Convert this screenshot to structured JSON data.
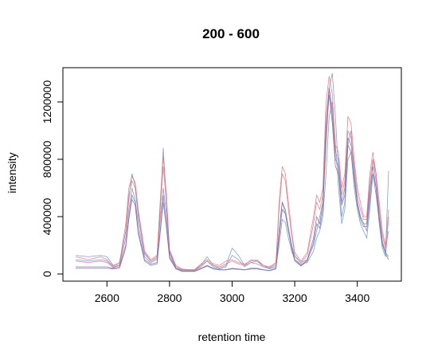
{
  "chart_data": {
    "type": "line",
    "title": "200 - 600",
    "xlabel": "retention time",
    "ylabel": "intensity",
    "xlim": [
      2500,
      3500
    ],
    "ylim": [
      0,
      1400000
    ],
    "x_ticks": [
      2600,
      2800,
      3000,
      3200,
      3400
    ],
    "x_tick_labels": [
      "2600",
      "2800",
      "3000",
      "3200",
      "3400"
    ],
    "y_ticks": [
      0,
      400000,
      800000,
      1200000
    ],
    "y_tick_labels": [
      "0",
      "400000",
      "800000",
      "1200000"
    ],
    "grid": false,
    "legend": "none",
    "colors": {
      "blue": "#6d8fc4",
      "red": "#e0737f",
      "purple": "#7d6fa8"
    },
    "x": [
      2500,
      2520,
      2540,
      2560,
      2580,
      2600,
      2620,
      2640,
      2660,
      2670,
      2680,
      2690,
      2700,
      2720,
      2740,
      2760,
      2770,
      2780,
      2790,
      2800,
      2820,
      2840,
      2860,
      2880,
      2900,
      2920,
      2940,
      2960,
      2980,
      3000,
      3020,
      3040,
      3060,
      3080,
      3100,
      3120,
      3140,
      3150,
      3160,
      3170,
      3180,
      3190,
      3200,
      3220,
      3240,
      3260,
      3270,
      3280,
      3290,
      3300,
      3310,
      3320,
      3330,
      3340,
      3350,
      3360,
      3370,
      3380,
      3390,
      3400,
      3410,
      3420,
      3430,
      3440,
      3450,
      3460,
      3470,
      3480,
      3490,
      3500
    ],
    "series": [
      {
        "color": "#6d8fc4",
        "values": [
          130000,
          125000,
          120000,
          125000,
          130000,
          120000,
          60000,
          80000,
          300000,
          520000,
          700000,
          620000,
          400000,
          150000,
          90000,
          120000,
          450000,
          880000,
          500000,
          160000,
          50000,
          30000,
          30000,
          30000,
          60000,
          120000,
          60000,
          40000,
          60000,
          180000,
          130000,
          60000,
          100000,
          90000,
          60000,
          40000,
          60000,
          300000,
          500000,
          420000,
          300000,
          200000,
          120000,
          80000,
          100000,
          200000,
          300000,
          400000,
          500000,
          900000,
          1300000,
          1400000,
          1100000,
          700000,
          400000,
          500000,
          900000,
          1000000,
          700000,
          500000,
          400000,
          350000,
          300000,
          500000,
          800000,
          700000,
          400000,
          200000,
          150000,
          720000
        ]
      },
      {
        "color": "#6d8fc4",
        "values": [
          100000,
          95000,
          90000,
          95000,
          100000,
          90000,
          50000,
          60000,
          250000,
          450000,
          600000,
          520000,
          350000,
          120000,
          80000,
          100000,
          380000,
          600000,
          420000,
          140000,
          40000,
          25000,
          25000,
          25000,
          50000,
          90000,
          50000,
          35000,
          50000,
          130000,
          100000,
          50000,
          80000,
          70000,
          50000,
          35000,
          50000,
          200000,
          380000,
          360000,
          250000,
          160000,
          100000,
          70000,
          80000,
          160000,
          250000,
          300000,
          400000,
          700000,
          1100000,
          1200000,
          900000,
          600000,
          350000,
          450000,
          800000,
          850000,
          600000,
          450000,
          350000,
          300000,
          250000,
          450000,
          700000,
          600000,
          350000,
          180000,
          120000,
          400000
        ]
      },
      {
        "color": "#e0737f",
        "values": [
          120000,
          110000,
          100000,
          110000,
          120000,
          100000,
          55000,
          70000,
          350000,
          600000,
          680000,
          640000,
          450000,
          160000,
          100000,
          130000,
          500000,
          820000,
          550000,
          170000,
          60000,
          35000,
          30000,
          30000,
          70000,
          100000,
          70000,
          60000,
          90000,
          100000,
          80000,
          70000,
          90000,
          100000,
          60000,
          50000,
          80000,
          500000,
          750000,
          700000,
          500000,
          300000,
          150000,
          90000,
          150000,
          400000,
          550000,
          500000,
          600000,
          1200000,
          1380000,
          1250000,
          900000,
          850000,
          600000,
          700000,
          1100000,
          1050000,
          800000,
          600000,
          500000,
          400000,
          400000,
          700000,
          850000,
          700000,
          500000,
          300000,
          200000,
          450000
        ]
      },
      {
        "color": "#e0737f",
        "values": [
          90000,
          85000,
          80000,
          85000,
          90000,
          80000,
          45000,
          60000,
          300000,
          550000,
          650000,
          600000,
          420000,
          140000,
          90000,
          110000,
          450000,
          750000,
          500000,
          150000,
          50000,
          30000,
          25000,
          25000,
          60000,
          90000,
          60000,
          50000,
          70000,
          90000,
          70000,
          60000,
          80000,
          90000,
          50000,
          45000,
          70000,
          450000,
          700000,
          650000,
          450000,
          270000,
          130000,
          80000,
          130000,
          350000,
          500000,
          450000,
          550000,
          1100000,
          1300000,
          1150000,
          850000,
          800000,
          550000,
          650000,
          1000000,
          950000,
          750000,
          550000,
          450000,
          380000,
          380000,
          650000,
          800000,
          650000,
          450000,
          270000,
          180000,
          300000
        ]
      },
      {
        "color": "#7d6fa8",
        "values": [
          50000,
          50000,
          50000,
          50000,
          50000,
          50000,
          40000,
          50000,
          200000,
          400000,
          550000,
          500000,
          300000,
          100000,
          70000,
          80000,
          300000,
          550000,
          350000,
          120000,
          40000,
          20000,
          20000,
          20000,
          40000,
          60000,
          40000,
          30000,
          30000,
          40000,
          35000,
          30000,
          40000,
          40000,
          30000,
          25000,
          40000,
          300000,
          500000,
          450000,
          320000,
          200000,
          100000,
          60000,
          100000,
          250000,
          400000,
          350000,
          500000,
          1000000,
          1300000,
          1100000,
          800000,
          750000,
          500000,
          600000,
          950000,
          900000,
          700000,
          500000,
          400000,
          350000,
          350000,
          600000,
          750000,
          600000,
          400000,
          230000,
          150000,
          120000
        ]
      },
      {
        "color": "#7d6fa8",
        "values": [
          40000,
          40000,
          40000,
          40000,
          40000,
          40000,
          35000,
          40000,
          180000,
          380000,
          520000,
          480000,
          280000,
          90000,
          60000,
          70000,
          280000,
          500000,
          320000,
          110000,
          35000,
          18000,
          18000,
          18000,
          35000,
          55000,
          35000,
          28000,
          28000,
          35000,
          32000,
          28000,
          35000,
          35000,
          28000,
          22000,
          35000,
          250000,
          450000,
          420000,
          300000,
          180000,
          90000,
          55000,
          90000,
          220000,
          350000,
          320000,
          450000,
          950000,
          1250000,
          1050000,
          750000,
          700000,
          480000,
          550000,
          900000,
          850000,
          650000,
          480000,
          380000,
          330000,
          330000,
          550000,
          700000,
          550000,
          380000,
          210000,
          140000,
          100000
        ]
      }
    ]
  }
}
